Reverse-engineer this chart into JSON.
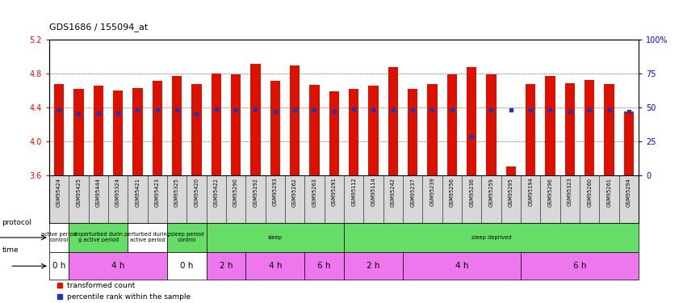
{
  "title": "GDS1686 / 155094_at",
  "samples": [
    "GSM95424",
    "GSM95425",
    "GSM95444",
    "GSM95324",
    "GSM95421",
    "GSM95423",
    "GSM95325",
    "GSM95420",
    "GSM95422",
    "GSM95290",
    "GSM95292",
    "GSM95293",
    "GSM95262",
    "GSM95263",
    "GSM95291",
    "GSM95112",
    "GSM95114",
    "GSM95242",
    "GSM95237",
    "GSM95239",
    "GSM95256",
    "GSM95236",
    "GSM95259",
    "GSM95295",
    "GSM95194",
    "GSM95296",
    "GSM95323",
    "GSM95260",
    "GSM95261",
    "GSM95294"
  ],
  "bar_tops": [
    4.67,
    4.62,
    4.65,
    4.6,
    4.63,
    4.71,
    4.77,
    4.67,
    4.8,
    4.79,
    4.91,
    4.71,
    4.89,
    4.66,
    4.59,
    4.62,
    4.65,
    4.87,
    4.62,
    4.67,
    4.79,
    4.87,
    4.79,
    3.7,
    4.67,
    4.77,
    4.68,
    4.72,
    4.67,
    4.35
  ],
  "percentile_values": [
    4.37,
    4.32,
    4.33,
    4.33,
    4.37,
    4.37,
    4.37,
    4.32,
    4.38,
    4.37,
    4.38,
    4.35,
    4.37,
    4.37,
    4.35,
    4.38,
    4.37,
    4.37,
    4.37,
    4.37,
    4.37,
    4.05,
    4.37,
    4.37,
    4.37,
    4.37,
    4.35,
    4.37,
    4.37,
    4.35
  ],
  "bar_bottom": 3.6,
  "ylim_left": [
    3.6,
    5.2
  ],
  "ylim_right": [
    0,
    100
  ],
  "yticks_left": [
    3.6,
    4.0,
    4.4,
    4.8,
    5.2
  ],
  "yticks_right": [
    0,
    25,
    50,
    75,
    100
  ],
  "ytick_right_labels": [
    "0",
    "25",
    "50",
    "75",
    "100%"
  ],
  "bar_color": "#dd1100",
  "blue_marker_color": "#2233bb",
  "bg_color": "#ffffff",
  "label_bg_color": "#d8d8d8",
  "protocol_groups": [
    {
      "label": "active period\ncontrol",
      "start": 0,
      "end": 1,
      "color": "#ffffff"
    },
    {
      "label": "unperturbed durin\ng active period",
      "start": 1,
      "end": 4,
      "color": "#66dd66"
    },
    {
      "label": "perturbed during\nactive period",
      "start": 4,
      "end": 6,
      "color": "#ffffff"
    },
    {
      "label": "sleep period\ncontrol",
      "start": 6,
      "end": 8,
      "color": "#66dd66"
    },
    {
      "label": "sleep",
      "start": 8,
      "end": 15,
      "color": "#66dd66"
    },
    {
      "label": "sleep deprived",
      "start": 15,
      "end": 30,
      "color": "#66dd66"
    }
  ],
  "time_groups": [
    {
      "label": "0 h",
      "start": 0,
      "end": 1,
      "color": "#ffffff"
    },
    {
      "label": "4 h",
      "start": 1,
      "end": 6,
      "color": "#ee77ee"
    },
    {
      "label": "0 h",
      "start": 6,
      "end": 8,
      "color": "#ffffff"
    },
    {
      "label": "2 h",
      "start": 8,
      "end": 10,
      "color": "#ee77ee"
    },
    {
      "label": "4 h",
      "start": 10,
      "end": 13,
      "color": "#ee77ee"
    },
    {
      "label": "6 h",
      "start": 13,
      "end": 15,
      "color": "#ee77ee"
    },
    {
      "label": "2 h",
      "start": 15,
      "end": 18,
      "color": "#ee77ee"
    },
    {
      "label": "4 h",
      "start": 18,
      "end": 24,
      "color": "#ee77ee"
    },
    {
      "label": "6 h",
      "start": 24,
      "end": 30,
      "color": "#ee77ee"
    }
  ]
}
